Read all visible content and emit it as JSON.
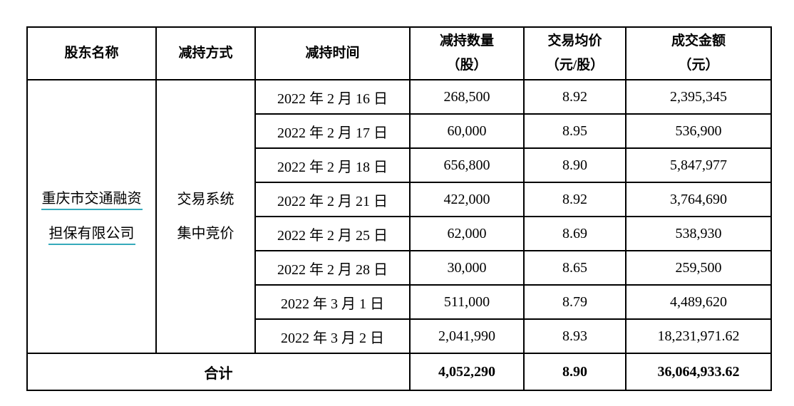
{
  "table": {
    "headers": {
      "shareholder": "股东名称",
      "method": "减持方式",
      "time": "减持时间",
      "shares_line1": "减持数量",
      "shares_line2": "（股）",
      "price_line1": "交易均价",
      "price_line2": "（元/股）",
      "amount_line1": "成交金额",
      "amount_line2": "（元）"
    },
    "shareholder": {
      "name_line1": "重庆市交通融资",
      "name_line2": "担保有限公司"
    },
    "method": {
      "line1": "交易系统",
      "line2": "集中竞价"
    },
    "rows": [
      {
        "date": "2022 年 2 月 16 日",
        "shares": "268,500",
        "price": "8.92",
        "amount": "2,395,345"
      },
      {
        "date": "2022 年 2 月 17 日",
        "shares": "60,000",
        "price": "8.95",
        "amount": "536,900"
      },
      {
        "date": "2022 年 2 月 18 日",
        "shares": "656,800",
        "price": "8.90",
        "amount": "5,847,977"
      },
      {
        "date": "2022 年 2 月 21 日",
        "shares": "422,000",
        "price": "8.92",
        "amount": "3,764,690"
      },
      {
        "date": "2022 年 2 月 25 日",
        "shares": "62,000",
        "price": "8.69",
        "amount": "538,930"
      },
      {
        "date": "2022 年 2 月 28 日",
        "shares": "30,000",
        "price": "8.65",
        "amount": "259,500"
      },
      {
        "date": "2022 年 3 月 1 日",
        "shares": "511,000",
        "price": "8.79",
        "amount": "4,489,620"
      },
      {
        "date": "2022 年 3 月 2 日",
        "shares": "2,041,990",
        "price": "8.93",
        "amount": "18,231,971.62"
      }
    ],
    "total": {
      "label": "合计",
      "shares": "4,052,290",
      "price": "8.90",
      "amount": "36,064,933.62"
    },
    "colors": {
      "link_underline": "#35aabb",
      "border": "#000000",
      "text": "#000000",
      "background": "#ffffff"
    }
  }
}
